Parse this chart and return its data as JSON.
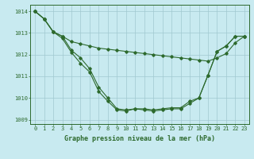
{
  "x": [
    0,
    1,
    2,
    3,
    4,
    5,
    6,
    7,
    8,
    9,
    10,
    11,
    12,
    13,
    14,
    15,
    16,
    17,
    18,
    19,
    20,
    21,
    22,
    23
  ],
  "line1": [
    1014.0,
    1013.65,
    1013.05,
    1012.85,
    1012.6,
    1012.5,
    1012.4,
    1012.3,
    1012.25,
    1012.2,
    1012.15,
    1012.1,
    1012.05,
    1012.0,
    1011.95,
    1011.9,
    1011.85,
    1011.8,
    1011.75,
    1011.7,
    1011.85,
    1012.05,
    1012.55,
    1012.85
  ],
  "line2": [
    1014.0,
    1013.65,
    1013.05,
    1012.85,
    1012.2,
    1011.85,
    1011.35,
    1010.5,
    1010.0,
    1009.5,
    1009.45,
    1009.5,
    1009.5,
    1009.45,
    1009.5,
    1009.55,
    1009.55,
    1009.85,
    1010.0,
    1011.05,
    1012.15,
    1012.4,
    1012.85,
    1012.85
  ],
  "line3": [
    1014.0,
    1013.65,
    1013.05,
    1012.75,
    1012.1,
    1011.6,
    1011.2,
    1010.3,
    1009.85,
    1009.45,
    1009.4,
    1009.5,
    1009.45,
    1009.4,
    1009.45,
    1009.5,
    1009.5,
    1009.75,
    1010.0,
    1011.05,
    1012.15,
    1012.4,
    1012.85,
    1012.85
  ],
  "color": "#2d6a2d",
  "bg_color": "#c8eaf0",
  "grid_color": "#a0c8d0",
  "xlabel": "Graphe pression niveau de la mer (hPa)",
  "ylim": [
    1008.8,
    1014.3
  ],
  "yticks": [
    1009,
    1010,
    1011,
    1012,
    1013,
    1014
  ],
  "xticks": [
    0,
    1,
    2,
    3,
    4,
    5,
    6,
    7,
    8,
    9,
    10,
    11,
    12,
    13,
    14,
    15,
    16,
    17,
    18,
    19,
    20,
    21,
    22,
    23
  ],
  "marker": "D",
  "markersize": 1.8,
  "linewidth": 0.8,
  "tick_fontsize": 5.0,
  "xlabel_fontsize": 6.0
}
